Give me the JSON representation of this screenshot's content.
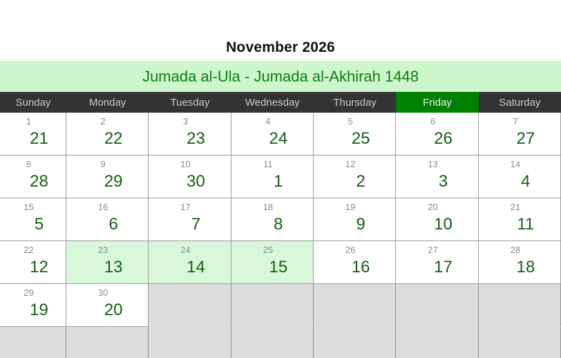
{
  "title": "November 2026",
  "hijri_range": "Jumada al-Ula - Jumada al-Akhirah 1448",
  "weekdays": [
    "Sunday",
    "Monday",
    "Tuesday",
    "Wednesday",
    "Thursday",
    "Friday",
    "Saturday"
  ],
  "highlighted_weekday": "Friday",
  "colors": {
    "header_bg": "#333333",
    "header_text": "#c9c9c9",
    "friday_bg": "#008000",
    "friday_text": "#f2f2f2",
    "banner_bg": "#cdf6cd",
    "banner_text": "#0e7d0e",
    "hijri_number": "#145f14",
    "greg_number": "#8a8a8a",
    "highlight_cell_bg": "#d9f8d9",
    "empty_cell_bg": "#dcdcdc",
    "grid_border": "#9c9c9c"
  },
  "weeks": [
    [
      {
        "gregorian": "1",
        "hijri": "21",
        "state": "normal"
      },
      {
        "gregorian": "2",
        "hijri": "22",
        "state": "normal"
      },
      {
        "gregorian": "3",
        "hijri": "23",
        "state": "normal"
      },
      {
        "gregorian": "4",
        "hijri": "24",
        "state": "normal"
      },
      {
        "gregorian": "5",
        "hijri": "25",
        "state": "normal"
      },
      {
        "gregorian": "6",
        "hijri": "26",
        "state": "normal"
      },
      {
        "gregorian": "7",
        "hijri": "27",
        "state": "normal"
      }
    ],
    [
      {
        "gregorian": "8",
        "hijri": "28",
        "state": "normal"
      },
      {
        "gregorian": "9",
        "hijri": "29",
        "state": "normal"
      },
      {
        "gregorian": "10",
        "hijri": "30",
        "state": "normal"
      },
      {
        "gregorian": "11",
        "hijri": "1",
        "state": "normal"
      },
      {
        "gregorian": "12",
        "hijri": "2",
        "state": "normal"
      },
      {
        "gregorian": "13",
        "hijri": "3",
        "state": "normal"
      },
      {
        "gregorian": "14",
        "hijri": "4",
        "state": "normal"
      }
    ],
    [
      {
        "gregorian": "15",
        "hijri": "5",
        "state": "normal"
      },
      {
        "gregorian": "16",
        "hijri": "6",
        "state": "normal"
      },
      {
        "gregorian": "17",
        "hijri": "7",
        "state": "normal"
      },
      {
        "gregorian": "18",
        "hijri": "8",
        "state": "normal"
      },
      {
        "gregorian": "19",
        "hijri": "9",
        "state": "normal"
      },
      {
        "gregorian": "20",
        "hijri": "10",
        "state": "normal"
      },
      {
        "gregorian": "21",
        "hijri": "11",
        "state": "normal"
      }
    ],
    [
      {
        "gregorian": "22",
        "hijri": "12",
        "state": "normal"
      },
      {
        "gregorian": "23",
        "hijri": "13",
        "state": "highlight"
      },
      {
        "gregorian": "24",
        "hijri": "14",
        "state": "highlight"
      },
      {
        "gregorian": "25",
        "hijri": "15",
        "state": "highlight"
      },
      {
        "gregorian": "26",
        "hijri": "16",
        "state": "normal"
      },
      {
        "gregorian": "27",
        "hijri": "17",
        "state": "normal"
      },
      {
        "gregorian": "28",
        "hijri": "18",
        "state": "normal"
      }
    ],
    [
      {
        "gregorian": "29",
        "hijri": "19",
        "state": "normal"
      },
      {
        "gregorian": "30",
        "hijri": "20",
        "state": "normal"
      },
      {
        "state": "empty"
      },
      {
        "state": "empty"
      },
      {
        "state": "empty"
      },
      {
        "state": "empty"
      },
      {
        "state": "empty"
      }
    ],
    [
      {
        "state": "empty"
      },
      {
        "state": "empty"
      },
      {
        "state": "empty"
      },
      {
        "state": "empty"
      },
      {
        "state": "empty"
      },
      {
        "state": "empty"
      },
      {
        "state": "empty"
      }
    ]
  ]
}
